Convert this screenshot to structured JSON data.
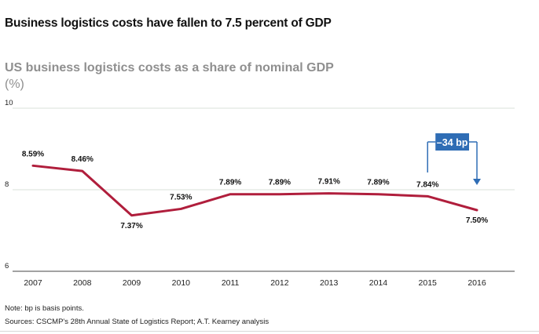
{
  "headline": "Business logistics costs have fallen to 7.5 percent of GDP",
  "note": "Note: bp is basis points.",
  "sources": "Sources: CSCMP's 28th Annual State of Logistics Report; A.T. Kearney analysis",
  "chart_data": {
    "type": "line",
    "title": "US business logistics costs as a share of nominal GDP",
    "ylabel": "(%)",
    "xlabel": "",
    "x": [
      "2007",
      "2008",
      "2009",
      "2010",
      "2011",
      "2012",
      "2013",
      "2014",
      "2015",
      "2016"
    ],
    "series": [
      {
        "values": [
          8.59,
          8.46,
          7.37,
          7.53,
          7.89,
          7.89,
          7.91,
          7.89,
          7.84,
          7.5
        ],
        "labels": [
          "8.59%",
          "8.46%",
          "7.37%",
          "7.53%",
          "7.89%",
          "7.89%",
          "7.91%",
          "7.89%",
          "7.84%",
          "7.50%"
        ]
      }
    ],
    "ylim": [
      6,
      10
    ],
    "yticks": [
      6,
      8,
      10
    ],
    "grid": true,
    "line_color": "#b01e3c",
    "annotation": {
      "text": "–34 bp",
      "from": "2015",
      "to": "2016",
      "color": "#2f6db5"
    }
  }
}
